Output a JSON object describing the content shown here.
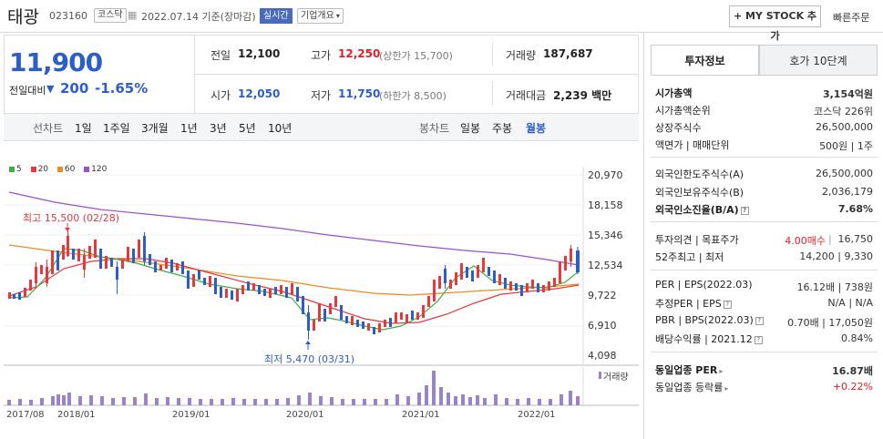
{
  "header": {
    "name": "태광",
    "code": "023160",
    "market": "코스닥",
    "date": "2022.07.14 기준(장마감)",
    "realtime": "실시간",
    "company_info": "기업개요",
    "my_stock": "+ MY STOCK 추가",
    "quick_order": "빠른주문"
  },
  "price": {
    "current": "11,900",
    "change_label": "전일대비",
    "change": "200",
    "change_pct": "-1.65%"
  },
  "stats": {
    "prev_label": "전일",
    "prev": "12,100",
    "high_label": "고가",
    "high": "12,250",
    "upper_limit": "(상한가 15,700)",
    "volume_label": "거래량",
    "volume": "187,687",
    "open_label": "시가",
    "open": "12,050",
    "low_label": "저가",
    "low": "11,750",
    "lower_limit": "(하한가 8,500)",
    "amount_label": "거래대금",
    "amount": "2,239 백만"
  },
  "toolbar": {
    "line_label": "선차트",
    "periods": [
      "1일",
      "1주일",
      "3개월",
      "1년",
      "3년",
      "5년",
      "10년"
    ],
    "candle_label": "봉차트",
    "candle_periods": [
      "일봉",
      "주봉",
      "월봉"
    ]
  },
  "chart": {
    "legend": [
      "5",
      "20",
      "60",
      "120"
    ],
    "legend_colors": [
      "#3cb043",
      "#e8383d",
      "#f08a1c",
      "#9b4fcf"
    ],
    "y_ticks": [
      "20,970",
      "18,158",
      "15,346",
      "12,534",
      "9,722",
      "6,910",
      "4,098"
    ],
    "x_ticks": [
      "2017/08",
      "2018/01",
      "2019/01",
      "2020/01",
      "2021/01",
      "2022/01"
    ],
    "high_note": "최고 15,500 (02/28)",
    "low_note": "최저 5,470 (03/31)",
    "volume_label": "거래량"
  },
  "panel": {
    "tab_invest": "투자정보",
    "tab_quote": "호가 10단계",
    "rows1": [
      {
        "label": "시가총액",
        "value": "3,154억원"
      },
      {
        "label": "시가총액순위",
        "value": "코스닥 226위"
      },
      {
        "label": "상장주식수",
        "value": "26,500,000"
      },
      {
        "label": "액면가 | 매매단위",
        "value": "500원 | 1주"
      }
    ],
    "rows2": [
      {
        "label": "외국인한도주식수(A)",
        "value": "26,500,000"
      },
      {
        "label": "외국인보유주식수(B)",
        "value": "2,036,179"
      },
      {
        "label": "외국인소진율(B/A)",
        "value": "7.68%"
      }
    ],
    "opinion_label": "투자의견 | 목표주가",
    "opinion_value": "4.00매수",
    "target_price": "16,750",
    "w52_label": "52주최고 | 최저",
    "w52_value": "14,200 | 9,330",
    "per_label": "PER | EPS(2022.03)",
    "per_value": "16.12배 | 738원",
    "est_per_label": "추정PER | EPS",
    "est_per_value": "N/A | N/A",
    "pbr_label": "PBR | BPS(2022.03)",
    "pbr_value": "0.70배 | 17,050원",
    "div_label": "배당수익률 | 2021.12",
    "div_value": "0.84%",
    "ind_per_label": "동일업종 PER",
    "ind_per_value": "16.87배",
    "ind_rate_label": "동일업종 등락률",
    "ind_rate_value": "+0.22%"
  }
}
